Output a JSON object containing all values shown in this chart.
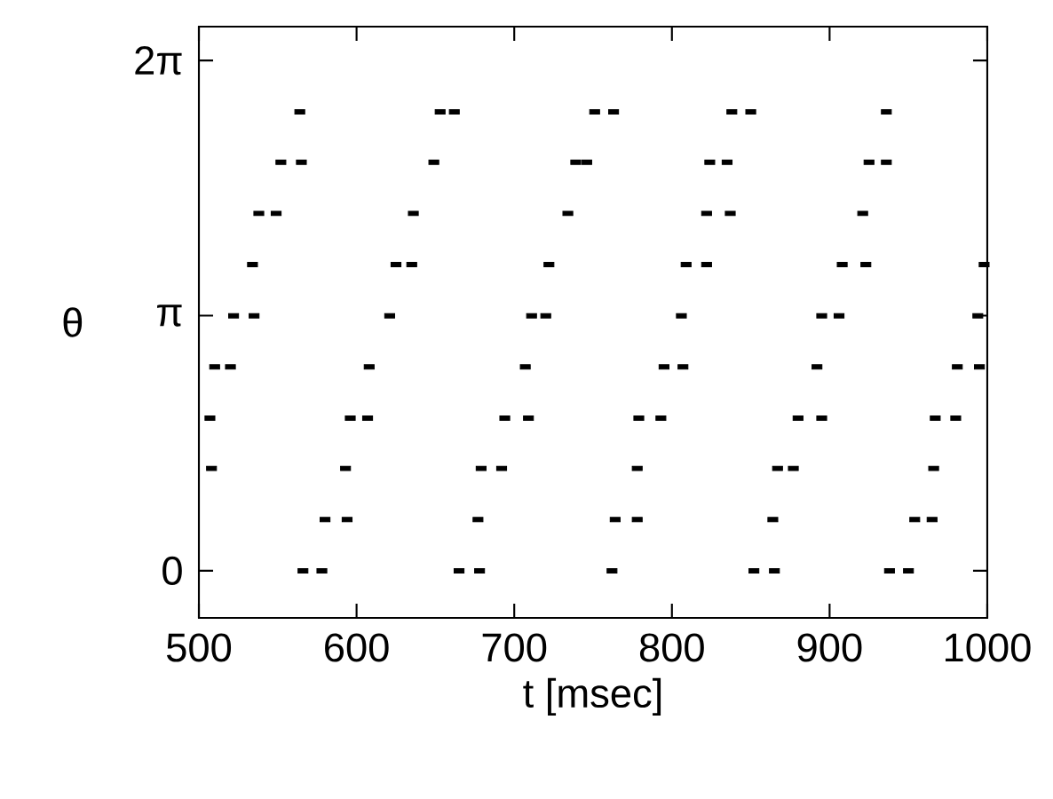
{
  "chart_data": {
    "type": "scatter",
    "xlabel": "t [msec]",
    "ylabel": "θ",
    "xlim": [
      500,
      1000
    ],
    "xticks": [
      500,
      600,
      700,
      800,
      900,
      1000
    ],
    "ylim": [
      -0.58,
      6.7
    ],
    "yticks": [
      {
        "value": 0,
        "label": "0"
      },
      {
        "value": 3.14159,
        "label": "π"
      },
      {
        "value": 6.28318,
        "label": "2π"
      }
    ],
    "grid": false,
    "marker": "square",
    "series": [
      {
        "color": "#000000",
        "x": [
          566,
          578,
          665,
          678,
          762,
          852,
          865,
          938,
          950,
          580,
          594,
          677,
          764,
          778,
          864,
          954,
          965,
          508,
          593,
          679,
          692,
          778,
          867,
          877,
          966,
          507,
          596,
          607,
          694,
          709,
          779,
          793,
          880,
          895,
          967,
          980,
          510,
          520,
          608,
          707,
          795,
          807,
          892,
          981,
          995,
          522,
          535,
          621,
          711,
          720,
          806,
          895,
          906,
          994,
          534,
          625,
          635,
          722,
          809,
          822,
          908,
          923,
          998,
          538,
          549,
          636,
          734,
          822,
          837,
          921,
          552,
          565,
          649,
          739,
          746,
          824,
          835,
          925,
          936,
          564,
          653,
          662,
          751,
          763,
          838,
          850,
          936
        ],
        "values": [
          0,
          0,
          0,
          0,
          0,
          0,
          0,
          0,
          0,
          0.63,
          0.63,
          0.63,
          0.63,
          0.63,
          0.63,
          0.63,
          0.63,
          1.26,
          1.26,
          1.26,
          1.26,
          1.26,
          1.26,
          1.26,
          1.26,
          1.88,
          1.88,
          1.88,
          1.88,
          1.88,
          1.88,
          1.88,
          1.88,
          1.88,
          1.88,
          1.88,
          2.51,
          2.51,
          2.51,
          2.51,
          2.51,
          2.51,
          2.51,
          2.51,
          2.51,
          3.14,
          3.14,
          3.14,
          3.14,
          3.14,
          3.14,
          3.14,
          3.14,
          3.14,
          3.77,
          3.77,
          3.77,
          3.77,
          3.77,
          3.77,
          3.77,
          3.77,
          3.77,
          4.4,
          4.4,
          4.4,
          4.4,
          4.4,
          4.4,
          4.4,
          5.03,
          5.03,
          5.03,
          5.03,
          5.03,
          5.03,
          5.03,
          5.03,
          5.03,
          5.65,
          5.65,
          5.65,
          5.65,
          5.65,
          5.65,
          5.65,
          5.65
        ]
      }
    ]
  }
}
